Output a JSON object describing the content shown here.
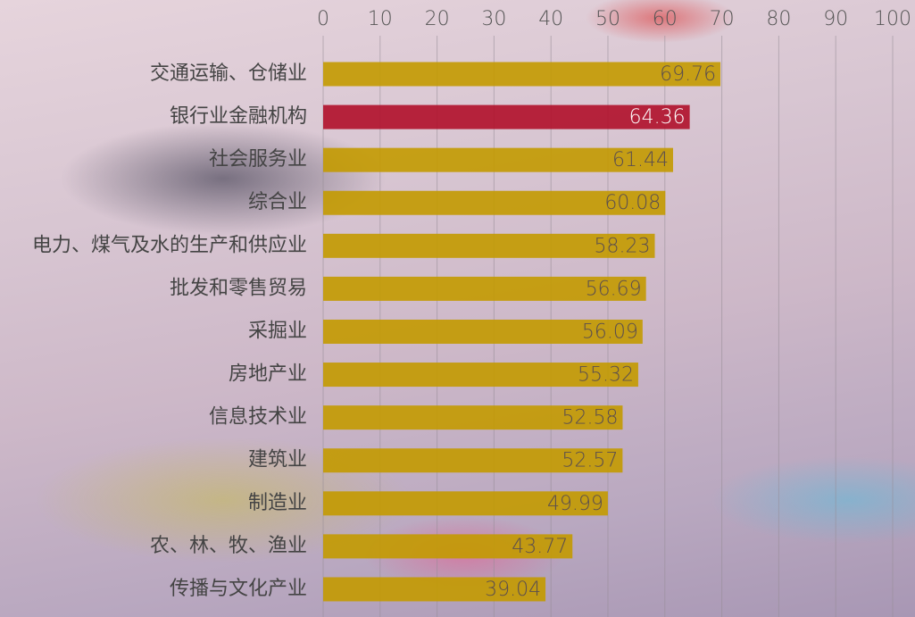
{
  "chart_data": {
    "type": "bar",
    "orientation": "horizontal",
    "categories": [
      "交通运输、仓储业",
      "银行业金融机构",
      "社会服务业",
      "综合业",
      "电力、煤气及水的生产和供应业",
      "批发和零售贸易",
      "采掘业",
      "房地产业",
      "信息技术业",
      "建筑业",
      "制造业",
      "农、林、牧、渔业",
      "传播与文化产业"
    ],
    "values": [
      69.76,
      64.36,
      61.44,
      60.08,
      58.23,
      56.69,
      56.09,
      55.32,
      52.58,
      52.57,
      49.99,
      43.77,
      39.04
    ],
    "colors": [
      "#c39a00",
      "#b0102a",
      "#c39a00",
      "#c39a00",
      "#c39a00",
      "#c39a00",
      "#c39a00",
      "#c39a00",
      "#c39a00",
      "#c39a00",
      "#c39a00",
      "#c39a00",
      "#c39a00"
    ],
    "xlim": [
      0,
      100
    ],
    "xticks": [
      0,
      10,
      20,
      30,
      40,
      50,
      60,
      70,
      80,
      90,
      100
    ],
    "grid": true
  }
}
